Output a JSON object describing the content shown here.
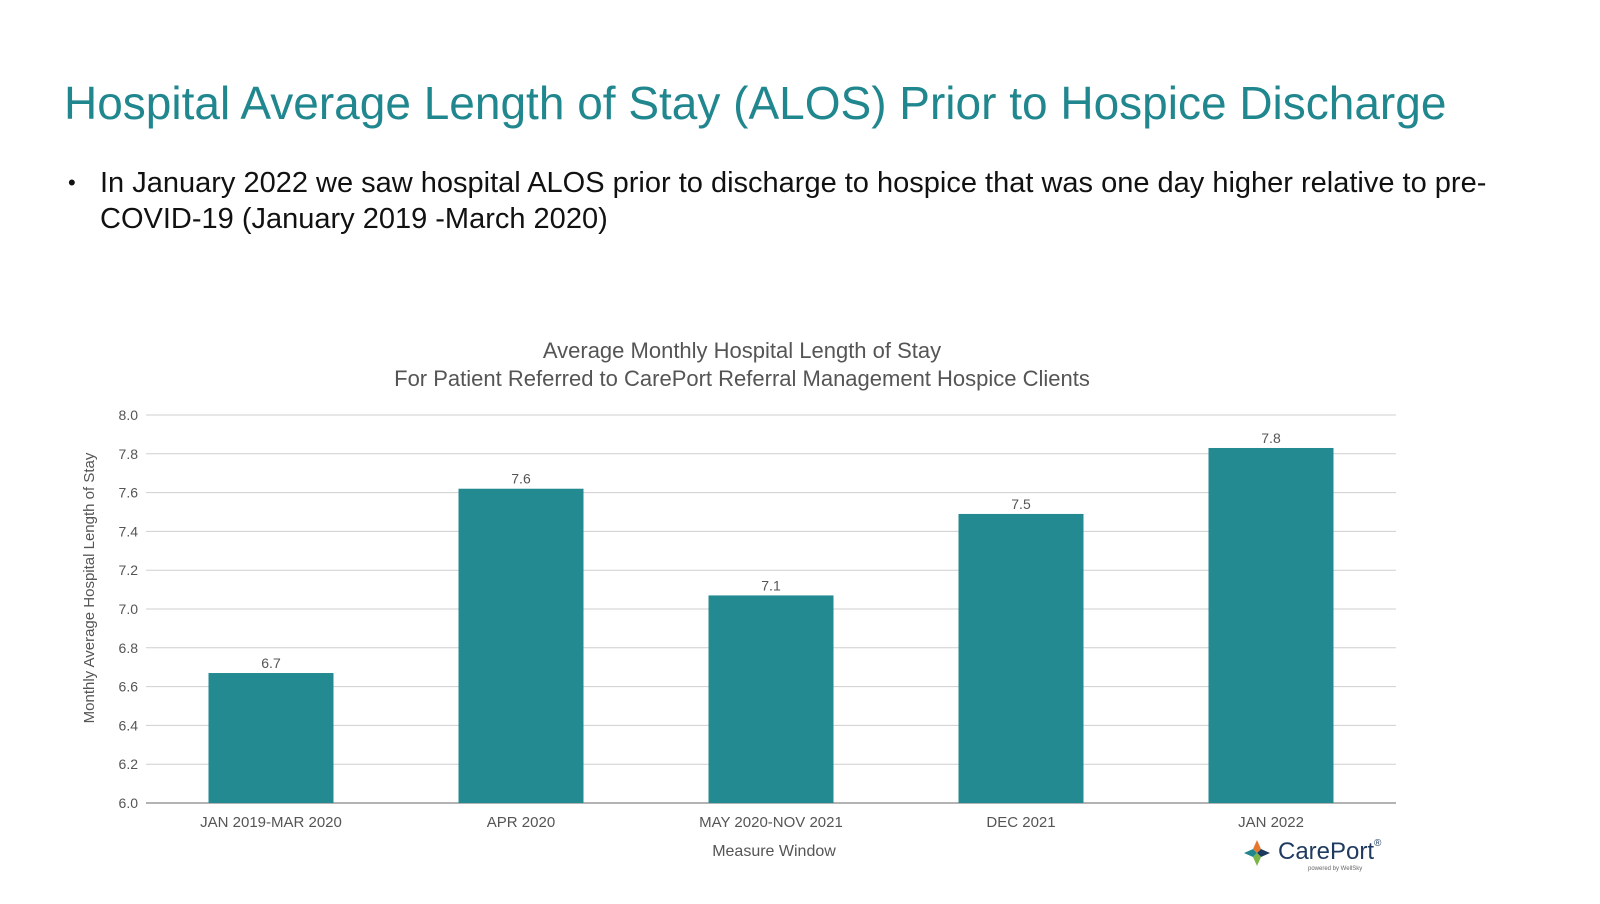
{
  "slide": {
    "title": "Hospital Average Length of Stay (ALOS) Prior to Hospice Discharge",
    "bullet": "In January 2022 we saw hospital ALOS prior to discharge to hospice that was one day higher relative to pre-COVID-19 (January 2019 -March 2020)"
  },
  "chart_data": {
    "type": "bar",
    "title": "Average Monthly Hospital Length of Stay",
    "subtitle": "For Patient Referred to CarePort Referral Management Hospice Clients",
    "xlabel": "Measure Window",
    "ylabel": "Monthly  Average Hospital Length of Stay",
    "categories": [
      "JAN 2019-MAR 2020",
      "APR 2020",
      "MAY 2020-NOV 2021",
      "DEC 2021",
      "JAN 2022"
    ],
    "values": [
      6.67,
      7.62,
      7.07,
      7.49,
      7.83
    ],
    "data_labels": [
      "6.7",
      "7.6",
      "7.1",
      "7.5",
      "7.8"
    ],
    "ylim": [
      6.0,
      8.0
    ],
    "yticks": [
      "6.0",
      "6.2",
      "6.4",
      "6.6",
      "6.8",
      "7.0",
      "7.2",
      "7.4",
      "7.6",
      "7.8",
      "8.0"
    ],
    "grid": true,
    "legend": "none",
    "bar_color": "#248a91"
  },
  "logo": {
    "name": "CarePort",
    "trademark": "®",
    "tagline": "powered by WellSky",
    "colors": [
      "#e8772e",
      "#1e3a5f",
      "#7ab648",
      "#21878f"
    ]
  }
}
